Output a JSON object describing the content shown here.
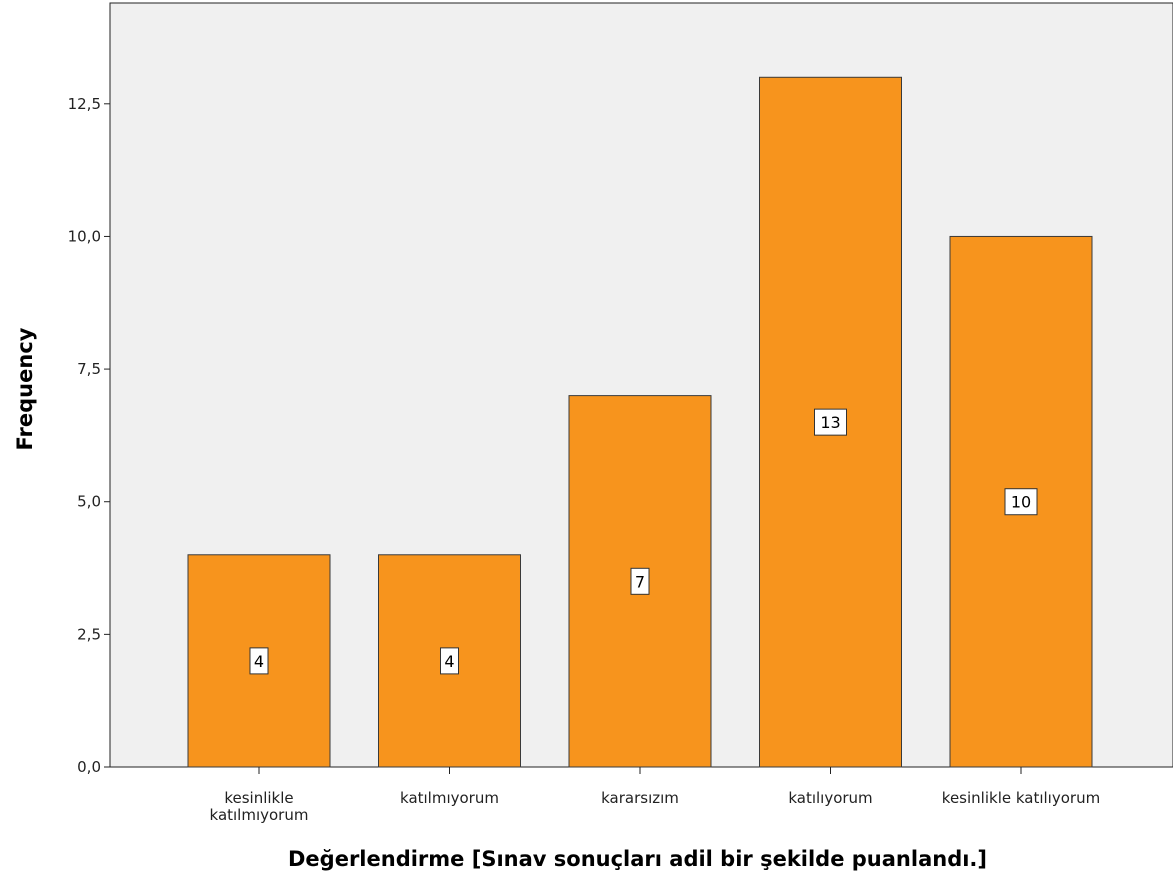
{
  "chart_data": {
    "type": "bar",
    "categories": [
      [
        "kesinlikle",
        "katılmıyorum"
      ],
      [
        "katılmıyorum"
      ],
      [
        "kararsızım"
      ],
      [
        "katılıyorum"
      ],
      [
        "kesinlikle katılıyorum"
      ]
    ],
    "values": [
      4,
      4,
      7,
      13,
      10
    ],
    "data_labels": [
      "4",
      "4",
      "7",
      "13",
      "10"
    ],
    "xlabel": "Değerlendirme [Sınav sonuçları adil bir şekilde puanlandı.]",
    "ylabel": "Frequency",
    "ylim": [
      0,
      14.4
    ],
    "yticks": [
      0,
      2.5,
      5,
      7.5,
      10,
      12.5
    ],
    "ytick_labels": [
      "0,0",
      "2,5",
      "5,0",
      "7,5",
      "10,0",
      "12,5"
    ],
    "grid": false,
    "colors": {
      "bar": "#f7941d",
      "bar_border": "#3a3a3a",
      "plot_background": "#f0f0f0",
      "axis": "#222222"
    }
  }
}
